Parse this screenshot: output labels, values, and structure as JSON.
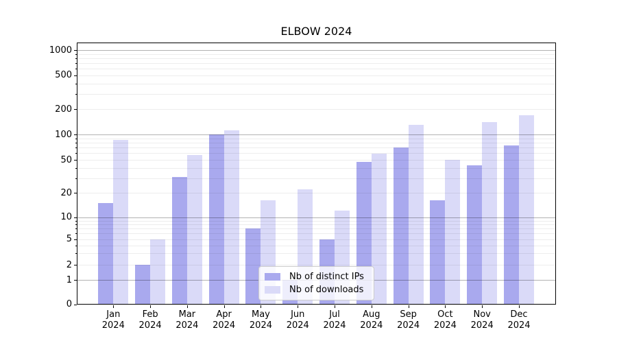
{
  "chart_data": {
    "type": "bar",
    "title": "ELBOW 2024",
    "categories": [
      "Jan 2024",
      "Feb 2024",
      "Mar 2024",
      "Apr 2024",
      "May 2024",
      "Jun 2024",
      "Jul 2024",
      "Aug 2024",
      "Sep 2024",
      "Oct 2024",
      "Nov 2024",
      "Dec 2024"
    ],
    "category_months": [
      "Jan",
      "Feb",
      "Mar",
      "Apr",
      "May",
      "Jun",
      "Jul",
      "Aug",
      "Sep",
      "Oct",
      "Nov",
      "Dec"
    ],
    "category_year": "2024",
    "series": [
      {
        "name": "Nb of distinct IPs",
        "color": "#a9a9ee",
        "values": [
          15,
          2,
          31,
          100,
          7,
          1,
          5,
          47,
          70,
          16,
          43,
          74
        ]
      },
      {
        "name": "Nb of downloads",
        "color": "#dadaf8",
        "values": [
          86,
          5,
          57,
          112,
          16,
          22,
          12,
          59,
          130,
          50,
          140,
          170
        ]
      }
    ],
    "yscale": "symlog",
    "yticks": [
      0,
      1,
      2,
      5,
      10,
      20,
      50,
      100,
      200,
      500,
      1000
    ],
    "ylim": [
      0,
      1230
    ],
    "xlabel": "",
    "ylabel": "",
    "grid": "horizontal major+minor",
    "legend_position": "lower center"
  }
}
